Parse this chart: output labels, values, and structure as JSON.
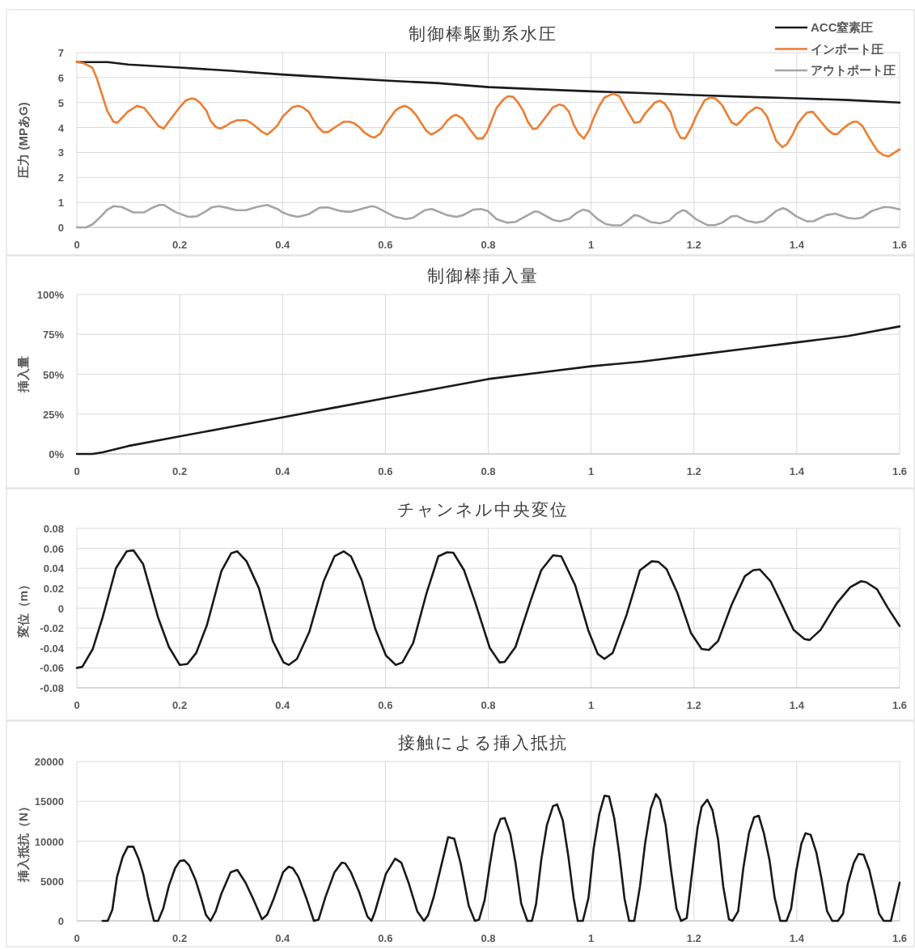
{
  "chart_data": [
    {
      "type": "line",
      "title": "制御棒駆動系水圧",
      "ylabel": "圧力 (MPあG)",
      "xlim": [
        0,
        1.6
      ],
      "xticks": [
        0,
        0.2,
        0.4,
        0.6,
        0.8,
        1,
        1.2,
        1.4,
        1.6
      ],
      "ylim": [
        0,
        7
      ],
      "yticks": [
        0,
        1,
        2,
        3,
        4,
        5,
        6,
        7
      ],
      "grid": true,
      "legend": "top right",
      "series": [
        {
          "name": "ACC窒素圧",
          "color": "#1a1a1a",
          "x": [
            0,
            0.06,
            0.1,
            0.2,
            0.3,
            0.4,
            0.5,
            0.6,
            0.7,
            0.8,
            0.9,
            1.0,
            1.1,
            1.2,
            1.3,
            1.4,
            1.5,
            1.6
          ],
          "values": [
            6.62,
            6.62,
            6.52,
            6.4,
            6.27,
            6.12,
            6.0,
            5.88,
            5.78,
            5.62,
            5.53,
            5.45,
            5.38,
            5.3,
            5.23,
            5.17,
            5.1,
            5.0
          ]
        },
        {
          "name": "インポート圧",
          "color": "#ed7d31",
          "x": [
            0,
            0.015,
            0.03,
            0.039,
            0.059,
            0.071,
            0.079,
            0.099,
            0.117,
            0.131,
            0.138,
            0.159,
            0.169,
            0.177,
            0.2,
            0.212,
            0.222,
            0.23,
            0.239,
            0.252,
            0.26,
            0.27,
            0.279,
            0.289,
            0.299,
            0.311,
            0.329,
            0.337,
            0.347,
            0.36,
            0.37,
            0.379,
            0.39,
            0.4,
            0.419,
            0.43,
            0.439,
            0.451,
            0.46,
            0.469,
            0.479,
            0.489,
            0.499,
            0.509,
            0.519,
            0.531,
            0.54,
            0.549,
            0.559,
            0.571,
            0.579,
            0.59,
            0.6,
            0.619,
            0.629,
            0.638,
            0.649,
            0.66,
            0.679,
            0.689,
            0.698,
            0.709,
            0.72,
            0.73,
            0.737,
            0.749,
            0.766,
            0.778,
            0.789,
            0.798,
            0.816,
            0.829,
            0.838,
            0.848,
            0.857,
            0.868,
            0.877,
            0.887,
            0.895,
            0.908,
            0.926,
            0.938,
            0.947,
            0.957,
            0.966,
            0.976,
            0.986,
            0.996,
            1.005,
            1.016,
            1.026,
            1.043,
            1.055,
            1.068,
            1.084,
            1.095,
            1.105,
            1.124,
            1.134,
            1.143,
            1.155,
            1.164,
            1.174,
            1.183,
            1.194,
            1.205,
            1.221,
            1.231,
            1.242,
            1.255,
            1.264,
            1.273,
            1.283,
            1.292,
            1.304,
            1.321,
            1.331,
            1.342,
            1.36,
            1.372,
            1.381,
            1.392,
            1.402,
            1.413,
            1.42,
            1.431,
            1.447,
            1.46,
            1.471,
            1.479,
            1.489,
            1.5,
            1.51,
            1.518,
            1.528,
            1.541,
            1.557,
            1.568,
            1.578,
            1.6
          ],
          "values": [
            6.62,
            6.56,
            6.4,
            5.96,
            4.67,
            4.23,
            4.19,
            4.63,
            4.87,
            4.78,
            4.6,
            4.05,
            3.96,
            4.19,
            4.81,
            5.09,
            5.16,
            5.14,
            5.0,
            4.67,
            4.27,
            4.02,
            3.96,
            4.05,
            4.19,
            4.29,
            4.29,
            4.21,
            4.05,
            3.83,
            3.72,
            3.86,
            4.08,
            4.43,
            4.81,
            4.87,
            4.81,
            4.63,
            4.3,
            4.02,
            3.82,
            3.82,
            3.97,
            4.1,
            4.23,
            4.23,
            4.16,
            4.02,
            3.8,
            3.64,
            3.6,
            3.75,
            4.12,
            4.67,
            4.81,
            4.87,
            4.74,
            4.49,
            3.88,
            3.72,
            3.81,
            3.97,
            4.27,
            4.45,
            4.51,
            4.38,
            3.88,
            3.56,
            3.56,
            3.83,
            4.78,
            5.11,
            5.25,
            5.23,
            5.03,
            4.67,
            4.23,
            3.94,
            3.97,
            4.32,
            4.81,
            4.92,
            4.87,
            4.63,
            4.12,
            3.75,
            3.56,
            3.88,
            4.38,
            4.87,
            5.2,
            5.36,
            5.25,
            4.76,
            4.19,
            4.23,
            4.56,
            5.0,
            5.07,
            4.96,
            4.6,
            3.99,
            3.59,
            3.56,
            3.97,
            4.49,
            5.09,
            5.2,
            5.16,
            4.89,
            4.54,
            4.21,
            4.1,
            4.27,
            4.56,
            4.81,
            4.74,
            4.45,
            3.47,
            3.21,
            3.34,
            3.72,
            4.16,
            4.45,
            4.6,
            4.63,
            4.23,
            3.91,
            3.74,
            3.74,
            3.94,
            4.12,
            4.23,
            4.23,
            4.05,
            3.58,
            3.06,
            2.9,
            2.84,
            3.12
          ]
        },
        {
          "name": "アウトポート圧",
          "color": "#a5a5a5",
          "x": [
            0,
            0.018,
            0.031,
            0.047,
            0.059,
            0.072,
            0.087,
            0.11,
            0.131,
            0.148,
            0.161,
            0.169,
            0.191,
            0.217,
            0.233,
            0.249,
            0.262,
            0.276,
            0.291,
            0.31,
            0.329,
            0.35,
            0.37,
            0.39,
            0.4,
            0.414,
            0.43,
            0.451,
            0.472,
            0.488,
            0.512,
            0.531,
            0.549,
            0.573,
            0.581,
            0.6,
            0.619,
            0.64,
            0.653,
            0.677,
            0.69,
            0.72,
            0.738,
            0.751,
            0.771,
            0.786,
            0.799,
            0.816,
            0.837,
            0.853,
            0.874,
            0.889,
            0.897,
            0.926,
            0.939,
            0.958,
            0.971,
            0.984,
            0.995,
            1.013,
            1.029,
            1.042,
            1.058,
            1.068,
            1.084,
            1.093,
            1.115,
            1.134,
            1.152,
            1.165,
            1.178,
            1.184,
            1.204,
            1.226,
            1.241,
            1.255,
            1.273,
            1.284,
            1.302,
            1.321,
            1.336,
            1.36,
            1.373,
            1.381,
            1.399,
            1.42,
            1.433,
            1.457,
            1.475,
            1.499,
            1.514,
            1.528,
            1.546,
            1.57,
            1.583,
            1.6
          ],
          "values": [
            0,
            0,
            0.13,
            0.44,
            0.71,
            0.85,
            0.82,
            0.6,
            0.6,
            0.8,
            0.9,
            0.9,
            0.62,
            0.42,
            0.44,
            0.62,
            0.8,
            0.85,
            0.79,
            0.69,
            0.69,
            0.82,
            0.9,
            0.74,
            0.6,
            0.49,
            0.42,
            0.53,
            0.79,
            0.8,
            0.66,
            0.62,
            0.71,
            0.85,
            0.82,
            0.62,
            0.42,
            0.33,
            0.38,
            0.69,
            0.74,
            0.49,
            0.42,
            0.49,
            0.71,
            0.74,
            0.66,
            0.33,
            0.19,
            0.22,
            0.46,
            0.63,
            0.63,
            0.3,
            0.24,
            0.35,
            0.57,
            0.71,
            0.66,
            0.33,
            0.13,
            0.08,
            0.08,
            0.22,
            0.49,
            0.46,
            0.22,
            0.16,
            0.27,
            0.53,
            0.69,
            0.66,
            0.33,
            0.09,
            0.09,
            0.19,
            0.44,
            0.46,
            0.27,
            0.19,
            0.25,
            0.66,
            0.77,
            0.71,
            0.44,
            0.24,
            0.25,
            0.49,
            0.55,
            0.38,
            0.35,
            0.4,
            0.66,
            0.82,
            0.8,
            0.72
          ]
        }
      ]
    },
    {
      "type": "line",
      "title": "制御棒挿入量",
      "ylabel": "挿入量",
      "xlim": [
        0,
        1.6
      ],
      "xticks": [
        0,
        0.2,
        0.4,
        0.6,
        0.8,
        1,
        1.2,
        1.4,
        1.6
      ],
      "ylim": [
        0,
        100
      ],
      "yticks": [
        {
          "value": 0,
          "label": "0%"
        },
        {
          "value": 25,
          "label": "25%"
        },
        {
          "value": 50,
          "label": "50%"
        },
        {
          "value": 75,
          "label": "75%"
        },
        {
          "value": 100,
          "label": "100%"
        }
      ],
      "grid": true,
      "series": [
        {
          "color": "#1a1a1a",
          "x": [
            0,
            0.03,
            0.05,
            0.1,
            0.2,
            0.3,
            0.4,
            0.5,
            0.6,
            0.7,
            0.8,
            0.9,
            1.0,
            1.1,
            1.2,
            1.3,
            1.4,
            1.5,
            1.6
          ],
          "values": [
            0,
            0,
            1,
            5,
            11,
            17,
            23,
            29,
            35,
            41,
            47,
            51,
            55,
            58,
            62,
            66,
            70,
            74,
            80
          ]
        }
      ]
    },
    {
      "type": "line",
      "title": "チャンネル中央変位",
      "ylabel": "変位（m）",
      "xlim": [
        0,
        1.6
      ],
      "xticks": [
        0,
        0.2,
        0.4,
        0.6,
        0.8,
        1,
        1.2,
        1.4,
        1.6
      ],
      "ylim": [
        -0.08,
        0.08
      ],
      "yticks": [
        -0.08,
        -0.06,
        -0.04,
        -0.02,
        0,
        0.02,
        0.04,
        0.06,
        0.08
      ],
      "grid": true,
      "series": [
        {
          "color": "#1a1a1a",
          "x": [
            0,
            0.0105,
            0.031,
            0.05,
            0.076,
            0.097,
            0.11,
            0.129,
            0.158,
            0.179,
            0.2,
            0.215,
            0.232,
            0.253,
            0.281,
            0.3,
            0.312,
            0.33,
            0.354,
            0.381,
            0.402,
            0.412,
            0.428,
            0.452,
            0.48,
            0.501,
            0.519,
            0.533,
            0.554,
            0.58,
            0.601,
            0.62,
            0.633,
            0.654,
            0.68,
            0.703,
            0.72,
            0.732,
            0.753,
            0.774,
            0.803,
            0.822,
            0.832,
            0.853,
            0.882,
            0.903,
            0.926,
            0.942,
            0.969,
            0.995,
            1.013,
            1.026,
            1.042,
            1.069,
            1.095,
            1.118,
            1.131,
            1.147,
            1.168,
            1.194,
            1.215,
            1.229,
            1.247,
            1.273,
            1.299,
            1.315,
            1.328,
            1.349,
            1.368,
            1.394,
            1.415,
            1.425,
            1.446,
            1.478,
            1.504,
            1.525,
            1.535,
            1.556,
            1.577,
            1.6
          ],
          "values": [
            -0.06,
            -0.059,
            -0.041,
            -0.0095,
            0.04,
            0.057,
            0.058,
            0.044,
            -0.0095,
            -0.039,
            -0.057,
            -0.056,
            -0.045,
            -0.017,
            0.037,
            0.055,
            0.057,
            0.047,
            0.02,
            -0.033,
            -0.0545,
            -0.057,
            -0.051,
            -0.024,
            0.027,
            0.052,
            0.057,
            0.052,
            0.028,
            -0.0203,
            -0.0475,
            -0.057,
            -0.0545,
            -0.035,
            0.015,
            0.052,
            0.056,
            0.0556,
            0.038,
            0.0068,
            -0.04,
            -0.0545,
            -0.054,
            -0.039,
            0.0068,
            0.038,
            0.053,
            0.052,
            0.023,
            -0.023,
            -0.046,
            -0.051,
            -0.045,
            -0.0068,
            0.038,
            0.047,
            0.0464,
            0.039,
            0.015,
            -0.0247,
            -0.041,
            -0.042,
            -0.033,
            0.003,
            0.032,
            0.038,
            0.0388,
            0.027,
            0.0068,
            -0.022,
            -0.031,
            -0.032,
            -0.022,
            0.005,
            0.021,
            0.027,
            0.026,
            0.019,
            0.0003,
            -0.018
          ]
        }
      ]
    },
    {
      "type": "line",
      "title": "接触による挿入抵抗",
      "ylabel": "挿入抵抗（N）",
      "xlim": [
        0,
        1.6
      ],
      "xticks": [
        0,
        0.2,
        0.4,
        0.6,
        0.8,
        1,
        1.2,
        1.4,
        1.6
      ],
      "ylim": [
        0,
        20000
      ],
      "yticks": [
        0,
        5000,
        10000,
        15000,
        20000
      ],
      "grid": true,
      "series": [
        {
          "color": "#1a1a1a",
          "x": [
            0.05,
            0.06,
            0.069,
            0.078,
            0.089,
            0.099,
            0.11,
            0.12,
            0.129,
            0.139,
            0.15,
            0.158,
            0.168,
            0.179,
            0.191,
            0.2,
            0.209,
            0.218,
            0.231,
            0.242,
            0.251,
            0.26,
            0.27,
            0.281,
            0.299,
            0.312,
            0.328,
            0.344,
            0.36,
            0.37,
            0.383,
            0.401,
            0.412,
            0.42,
            0.431,
            0.446,
            0.461,
            0.47,
            0.483,
            0.501,
            0.515,
            0.522,
            0.533,
            0.549,
            0.565,
            0.573,
            0.58,
            0.601,
            0.619,
            0.631,
            0.645,
            0.662,
            0.675,
            0.683,
            0.694,
            0.716,
            0.722,
            0.734,
            0.746,
            0.762,
            0.774,
            0.782,
            0.793,
            0.803,
            0.813,
            0.824,
            0.832,
            0.843,
            0.853,
            0.864,
            0.876,
            0.885,
            0.893,
            0.903,
            0.914,
            0.926,
            0.934,
            0.945,
            0.956,
            0.966,
            0.974,
            0.984,
            0.995,
            1.005,
            1.016,
            1.026,
            1.035,
            1.045,
            1.055,
            1.065,
            1.074,
            1.084,
            1.095,
            1.105,
            1.116,
            1.126,
            1.134,
            1.145,
            1.155,
            1.166,
            1.175,
            1.186,
            1.196,
            1.207,
            1.215,
            1.226,
            1.236,
            1.247,
            1.257,
            1.268,
            1.275,
            1.286,
            1.296,
            1.307,
            1.317,
            1.326,
            1.336,
            1.347,
            1.357,
            1.368,
            1.38,
            1.389,
            1.399,
            1.409,
            1.417,
            1.427,
            1.438,
            1.448,
            1.459,
            1.469,
            1.48,
            1.49,
            1.499,
            1.511,
            1.52,
            1.53,
            1.541,
            1.551,
            1.56,
            1.569,
            1.583,
            1.6
          ],
          "values": [
            0,
            0,
            1400,
            5500,
            8000,
            9300,
            9300,
            7800,
            5900,
            2800,
            0,
            0,
            1550,
            4400,
            6600,
            7500,
            7600,
            7000,
            5100,
            2800,
            750,
            0,
            1200,
            3400,
            6100,
            6400,
            4800,
            2600,
            200,
            750,
            2800,
            6100,
            6800,
            6600,
            5500,
            2900,
            0,
            150,
            2900,
            6100,
            7300,
            7200,
            6100,
            3600,
            550,
            0,
            1200,
            5900,
            7800,
            7300,
            4800,
            1200,
            0,
            700,
            3000,
            8900,
            10500,
            10300,
            7300,
            1900,
            0,
            150,
            2600,
            7000,
            10900,
            12800,
            12900,
            10900,
            7300,
            2200,
            0,
            0,
            2100,
            7600,
            12000,
            14400,
            14600,
            12600,
            8000,
            2900,
            0,
            0,
            2900,
            9100,
            13400,
            15700,
            15600,
            12900,
            8300,
            2800,
            0,
            0,
            4300,
            9700,
            14100,
            15900,
            15200,
            12000,
            6600,
            1550,
            0,
            350,
            5900,
            11700,
            14300,
            15200,
            13900,
            10200,
            4300,
            200,
            0,
            1200,
            6600,
            11000,
            13000,
            13200,
            11000,
            7600,
            2900,
            0,
            0,
            1550,
            6300,
            9700,
            11000,
            10800,
            8600,
            5300,
            1200,
            0,
            0,
            900,
            4600,
            7300,
            8400,
            8300,
            6400,
            3600,
            900,
            0,
            0,
            4800
          ]
        }
      ]
    }
  ]
}
